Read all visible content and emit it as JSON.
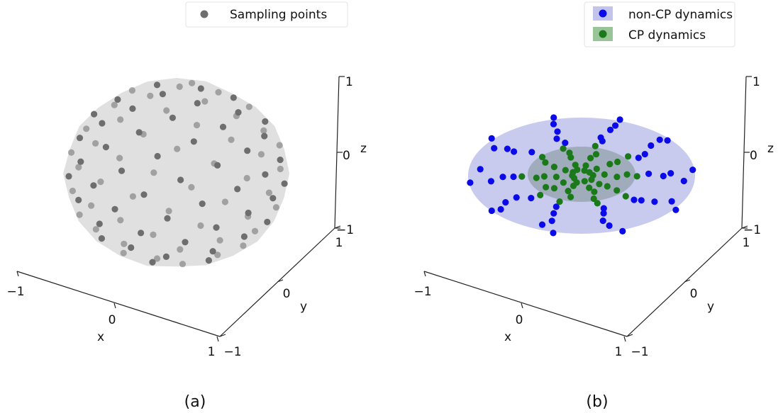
{
  "chart_data": [
    {
      "type": "scatter",
      "projection": "3d",
      "caption": "(a)",
      "legend": {
        "placement": "top",
        "entries": [
          {
            "label": "Sampling points",
            "color": "#6e6e6e"
          }
        ]
      },
      "axes": {
        "x": {
          "label": "x",
          "ticks": [
            "−1",
            "0",
            "1"
          ],
          "range": [
            -1,
            1
          ]
        },
        "y": {
          "label": "y",
          "ticks": [
            "−1",
            "0",
            "1"
          ],
          "range": [
            -1,
            1
          ]
        },
        "z": {
          "label": "z",
          "ticks": [
            "−1",
            "0",
            "1"
          ],
          "range": [
            -1,
            1
          ]
        }
      },
      "surface": {
        "shape": "sphere",
        "radius": 1,
        "color": "#dadada"
      },
      "series": [
        {
          "name": "Sampling points",
          "color": "#6e6e6e",
          "count": 100,
          "distribution": "uniform on unit sphere"
        }
      ]
    },
    {
      "type": "scatter",
      "projection": "3d",
      "caption": "(b)",
      "legend": {
        "placement": "top-right",
        "entries": [
          {
            "label": "non-CP dynamics",
            "color": "#0b0bea",
            "patch": "#c2c4ec"
          },
          {
            "label": "CP dynamics",
            "color": "#1a7a1a",
            "patch": "#98c498"
          }
        ]
      },
      "axes": {
        "x": {
          "label": "x",
          "ticks": [
            "−1",
            "0",
            "1"
          ],
          "range": [
            -1,
            1
          ]
        },
        "y": {
          "label": "y",
          "ticks": [
            "−1",
            "0",
            "1"
          ],
          "range": [
            -1,
            1
          ]
        },
        "z": {
          "label": "z",
          "ticks": [
            "−1",
            "0",
            "1"
          ],
          "range": [
            -1,
            1
          ]
        }
      },
      "surfaces": [
        {
          "shape": "disk",
          "radius": 1,
          "color": "#c2c4ec"
        },
        {
          "shape": "disk",
          "radius": 0.5,
          "color": "#8a9ba0"
        }
      ],
      "series": [
        {
          "name": "non-CP dynamics",
          "color": "#0b0bea",
          "count": 50,
          "radial_range": [
            0.6,
            1.0
          ]
        },
        {
          "name": "CP dynamics",
          "color": "#1a7a1a",
          "count": 50,
          "radial_range": [
            0.1,
            0.5
          ]
        }
      ]
    }
  ]
}
